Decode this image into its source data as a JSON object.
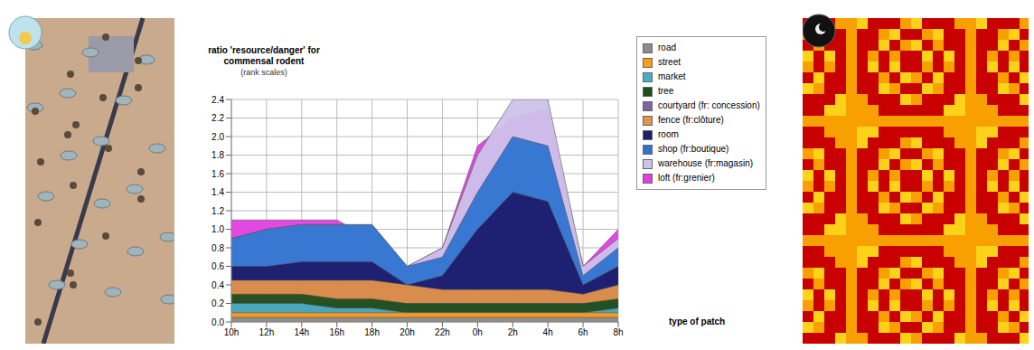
{
  "chart_data": {
    "type": "area",
    "title": "ratio 'resource/danger' for commensal rodent",
    "subtitle": "(rank scales)",
    "annotation": "type of patch",
    "categories": [
      "10h",
      "12h",
      "14h",
      "16h",
      "18h",
      "20h",
      "22h",
      "0h",
      "2h",
      "4h",
      "6h",
      "8h"
    ],
    "series": [
      {
        "name": "road",
        "color": "#8c8c8c",
        "values": [
          0.05,
          0.05,
          0.05,
          0.05,
          0.05,
          0.05,
          0.05,
          0.05,
          0.05,
          0.05,
          0.05,
          0.05
        ]
      },
      {
        "name": "street",
        "color": "#ff9a1a",
        "values": [
          0.1,
          0.1,
          0.1,
          0.1,
          0.1,
          0.1,
          0.1,
          0.1,
          0.1,
          0.1,
          0.1,
          0.1
        ]
      },
      {
        "name": "market",
        "color": "#4bacc6",
        "values": [
          0.2,
          0.2,
          0.2,
          0.15,
          0.15,
          0.1,
          0.1,
          0.1,
          0.1,
          0.1,
          0.1,
          0.15
        ]
      },
      {
        "name": "tree",
        "color": "#1d4f1d",
        "values": [
          0.3,
          0.3,
          0.3,
          0.25,
          0.25,
          0.2,
          0.2,
          0.2,
          0.2,
          0.2,
          0.2,
          0.25
        ]
      },
      {
        "name": "courtyard (fr: concession)",
        "color": "#8064a2",
        "values": [
          0.2,
          0.2,
          0.2,
          0.2,
          0.2,
          0.2,
          0.2,
          0.2,
          0.2,
          0.2,
          0.2,
          0.2
        ]
      },
      {
        "name": "fence (fr:clôture)",
        "color": "#e5924a",
        "values": [
          0.45,
          0.45,
          0.45,
          0.45,
          0.45,
          0.4,
          0.35,
          0.35,
          0.35,
          0.35,
          0.3,
          0.4
        ]
      },
      {
        "name": "room",
        "color": "#1c1c6b",
        "values": [
          0.6,
          0.6,
          0.65,
          0.65,
          0.65,
          0.4,
          0.5,
          1.0,
          1.4,
          1.3,
          0.4,
          0.6
        ]
      },
      {
        "name": "shop (fr:boutique)",
        "color": "#2f73d1",
        "values": [
          0.9,
          1.0,
          1.05,
          1.05,
          1.05,
          0.6,
          0.7,
          1.4,
          2.0,
          1.9,
          0.5,
          0.8
        ]
      },
      {
        "name": "warehouse (fr:magasin)",
        "color": "#cdc2ea",
        "values": [
          0.9,
          1.0,
          1.05,
          1.05,
          1.05,
          0.6,
          0.8,
          1.8,
          2.4,
          2.4,
          0.6,
          0.9
        ]
      },
      {
        "name": "loft (fr:grenier)",
        "color": "#e23ee2",
        "values": [
          1.1,
          1.1,
          1.1,
          1.1,
          0.9,
          0.6,
          0.8,
          1.9,
          2.2,
          2.3,
          0.6,
          1.0
        ]
      }
    ],
    "ylim": [
      0,
      2.4
    ],
    "yticks": [
      {
        "value": 0,
        "label": "0.0"
      },
      0.2,
      0.4,
      0.6,
      0.8,
      {
        "value": 1,
        "label": "1.0"
      },
      1.2,
      1.4,
      1.6,
      1.8,
      {
        "value": 2,
        "label": "2.0"
      },
      2.2,
      2.4
    ],
    "grid": true,
    "legend": "right"
  }
}
